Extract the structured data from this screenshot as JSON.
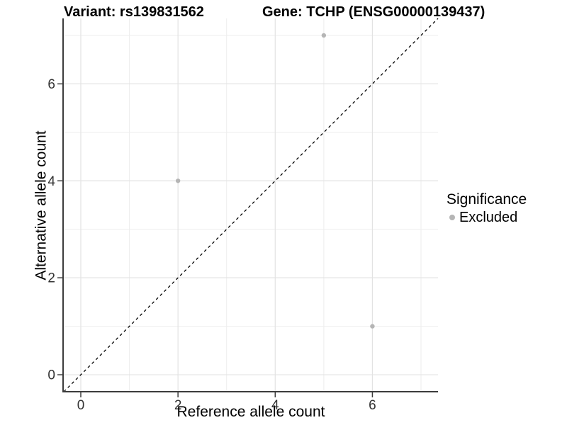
{
  "chart_data": {
    "type": "scatter",
    "title_left": "Variant: rs139831562",
    "title_right": "Gene: TCHP (ENSG00000139437)",
    "xlabel": "Reference allele count",
    "ylabel": "Alternative allele count",
    "xlim": [
      -0.35,
      7.35
    ],
    "ylim": [
      -0.35,
      7.35
    ],
    "x_major_ticks": [
      0,
      2,
      4,
      6
    ],
    "y_major_ticks": [
      0,
      2,
      4,
      6
    ],
    "x_minor_gridlines": [
      1,
      3,
      5,
      7
    ],
    "y_minor_gridlines": [
      1,
      3,
      5,
      7
    ],
    "grid": "major+minor",
    "identity_line": {
      "type": "dashed",
      "equation": "y = x",
      "color": "#000000",
      "dash": "4 4"
    },
    "series": [
      {
        "name": "Excluded",
        "color": "#b5b5b5",
        "marker": "circle",
        "points": [
          [
            2,
            4
          ],
          [
            5,
            7
          ],
          [
            6,
            1
          ]
        ]
      }
    ],
    "legend": {
      "title": "Significance",
      "position": "right",
      "items": [
        {
          "label": "Excluded",
          "color": "#b5b5b5",
          "marker": "circle"
        }
      ]
    },
    "colors": {
      "axis_line": "#3c3c3c",
      "tick_label": "#333333",
      "major_grid": "#e3e3e3",
      "minor_grid": "#ededed",
      "background": "#ffffff",
      "title": "#000000"
    }
  }
}
